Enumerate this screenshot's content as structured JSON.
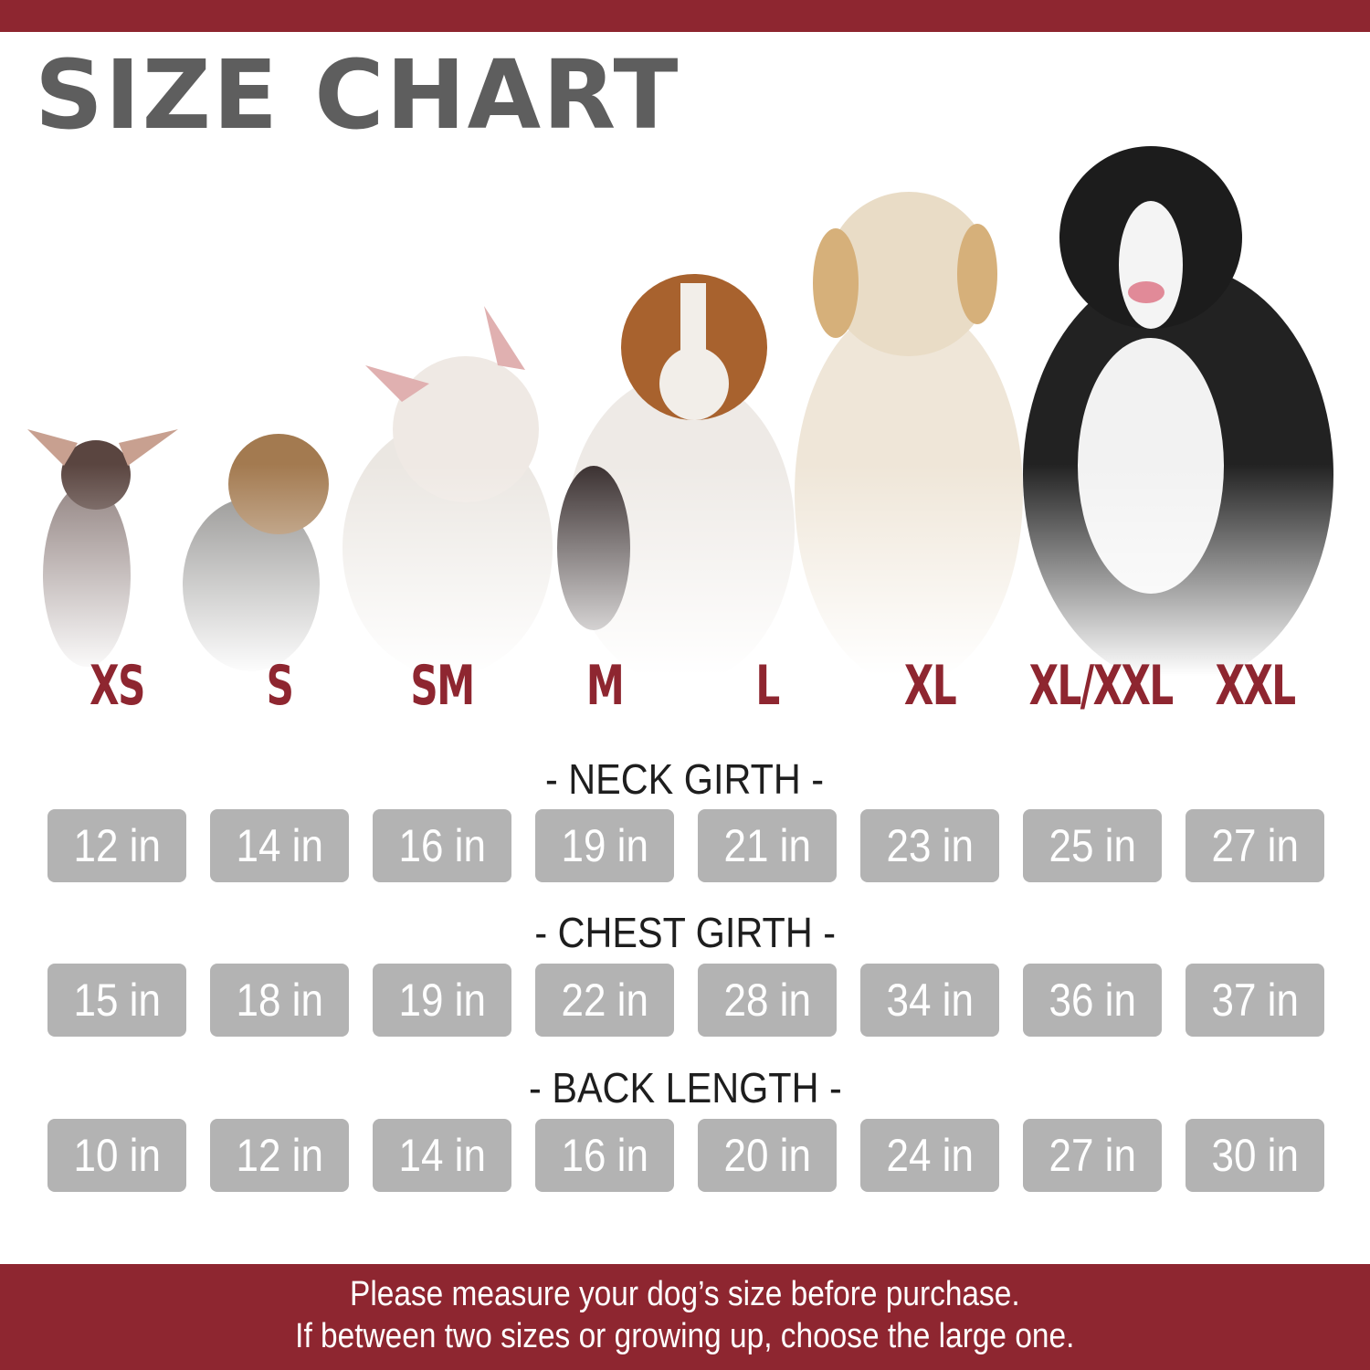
{
  "colors": {
    "brand": "#8e2630",
    "box": "#b3b3b3",
    "title": "#5e5e5e"
  },
  "title": "SIZE CHART",
  "sizes": [
    "XS",
    "S",
    "SM",
    "M",
    "L",
    "XL",
    "XL/XXL",
    "XXL"
  ],
  "sections": [
    {
      "label": "- NECK GIRTH -",
      "values": [
        "12 in",
        "14 in",
        "16 in",
        "19 in",
        "21 in",
        "23 in",
        "25 in",
        "27 in"
      ]
    },
    {
      "label": "- CHEST GIRTH -",
      "values": [
        "15 in",
        "18 in",
        "19 in",
        "22 in",
        "28 in",
        "34 in",
        "36 in",
        "37 in"
      ]
    },
    {
      "label": "- BACK LENGTH -",
      "values": [
        "10 in",
        "12 in",
        "14 in",
        "16 in",
        "20 in",
        "24 in",
        "27 in",
        "30 in"
      ]
    }
  ],
  "dogs": [
    "chihuahua",
    "yorkshire-terrier",
    "french-bulldog",
    "beagle",
    "golden-retriever",
    "bernese-mountain-dog"
  ],
  "footer": {
    "line1": "Please measure your dog’s size before purchase.",
    "line2": "If between two sizes or growing up, choose the large one."
  }
}
